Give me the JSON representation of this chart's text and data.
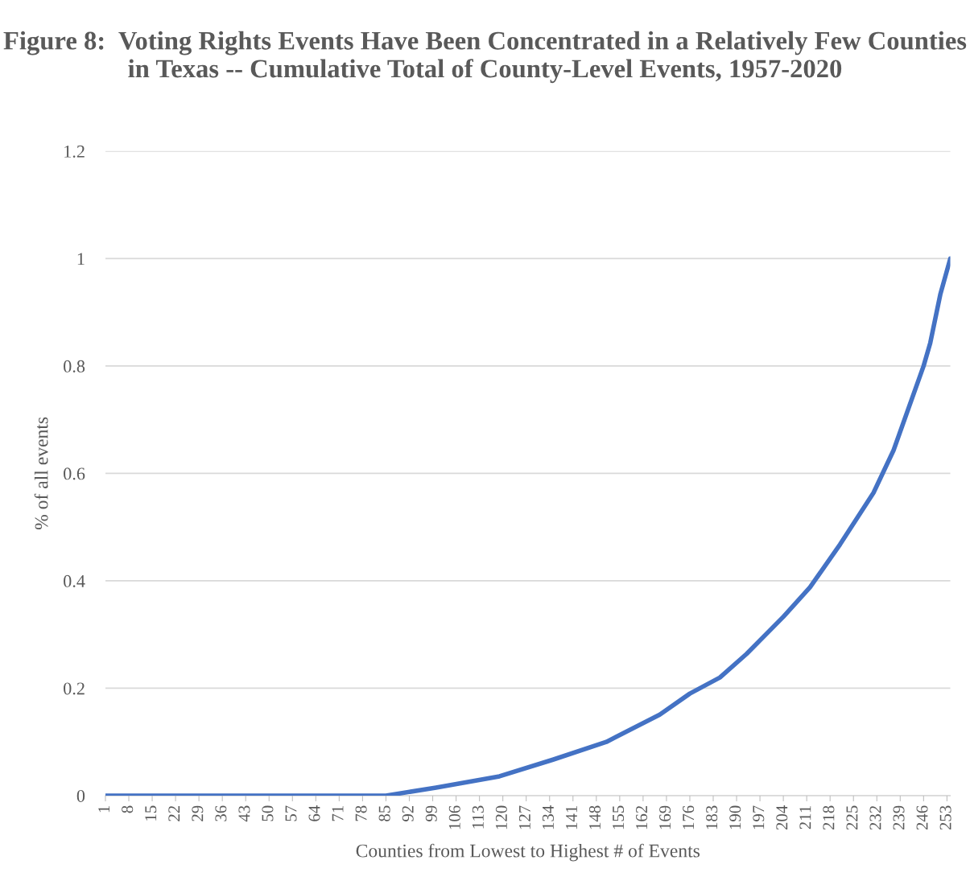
{
  "chart_data": {
    "type": "line",
    "title": "Figure 8:  Voting Rights Events Have Been Concentrated in a Relatively Few Counties in Texas -- Cumulative Total of County-Level Events, 1957-2020",
    "xlabel": "Counties from Lowest to Highest # of Events",
    "ylabel": "% of all events",
    "series": [
      {
        "color": "#4472c4",
        "x": [
          1,
          85,
          100,
          119,
          135,
          151,
          167,
          176,
          185,
          193,
          204,
          212,
          221,
          231,
          237,
          246,
          248,
          251,
          254
        ],
        "values": [
          0,
          0,
          0.015,
          0.036,
          0.067,
          0.1,
          0.151,
          0.19,
          0.22,
          0.264,
          0.333,
          0.388,
          0.468,
          0.564,
          0.643,
          0.8,
          0.843,
          0.933,
          1.0
        ]
      }
    ],
    "xlim": [
      1,
      254
    ],
    "xticks": [
      1,
      8,
      15,
      22,
      29,
      36,
      43,
      50,
      57,
      64,
      71,
      78,
      85,
      92,
      99,
      106,
      113,
      120,
      127,
      134,
      141,
      148,
      155,
      162,
      169,
      176,
      183,
      190,
      197,
      204,
      211,
      218,
      225,
      232,
      239,
      246,
      253
    ],
    "ylim": [
      0,
      1.2
    ],
    "yticks": [
      0,
      0.2,
      0.4,
      0.6,
      0.8,
      1,
      1.2
    ],
    "grid": "y",
    "legend": false,
    "marker": "none",
    "line_style": "solid"
  }
}
